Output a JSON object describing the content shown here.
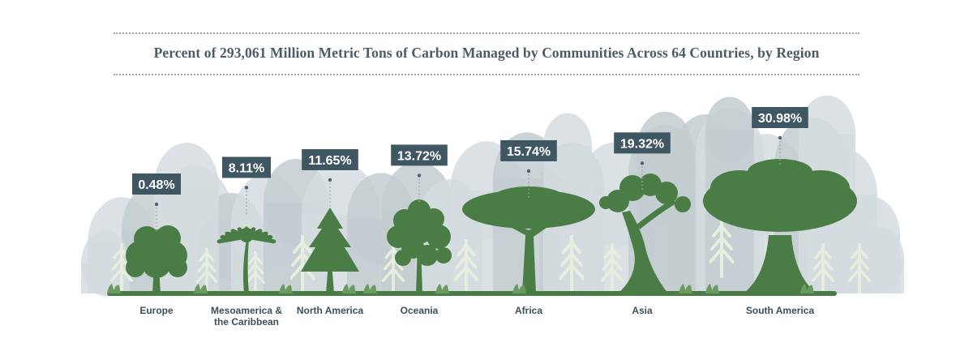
{
  "title": "Percent of 293,061 Million Metric Tons of Carbon Managed by Communities Across 64 Countries, by Region",
  "colors": {
    "tree": "#4a7c45",
    "ground": "#4a7c45",
    "label_box": "#3f5663",
    "background_trees": "#d5dcdf",
    "background_trees_dark": "#c3ccd0",
    "pine": "#e6ecdc"
  },
  "chart_data": {
    "type": "bar",
    "title": "Percent of 293,061 Million Metric Tons of Carbon Managed by Communities Across 64 Countries, by Region",
    "categories": [
      [
        "Europe"
      ],
      [
        "Mesoamerica &",
        "the Caribbean"
      ],
      [
        "North America"
      ],
      [
        "Oceania"
      ],
      [
        "Africa"
      ],
      [
        "Asia"
      ],
      [
        "South America"
      ]
    ],
    "values": [
      0.48,
      8.11,
      11.65,
      13.72,
      15.74,
      19.32,
      30.98
    ],
    "value_labels": [
      "0.48%",
      "8.11%",
      "11.65%",
      "13.72%",
      "15.74%",
      "19.32%",
      "30.98%"
    ],
    "tree_icons": [
      "broadleaf-tree-icon",
      "palm-tree-icon",
      "conifer-tree-icon",
      "eucalyptus-tree-icon",
      "acacia-tree-icon",
      "twisted-tree-icon",
      "rainforest-tree-icon"
    ],
    "unit": "%"
  }
}
